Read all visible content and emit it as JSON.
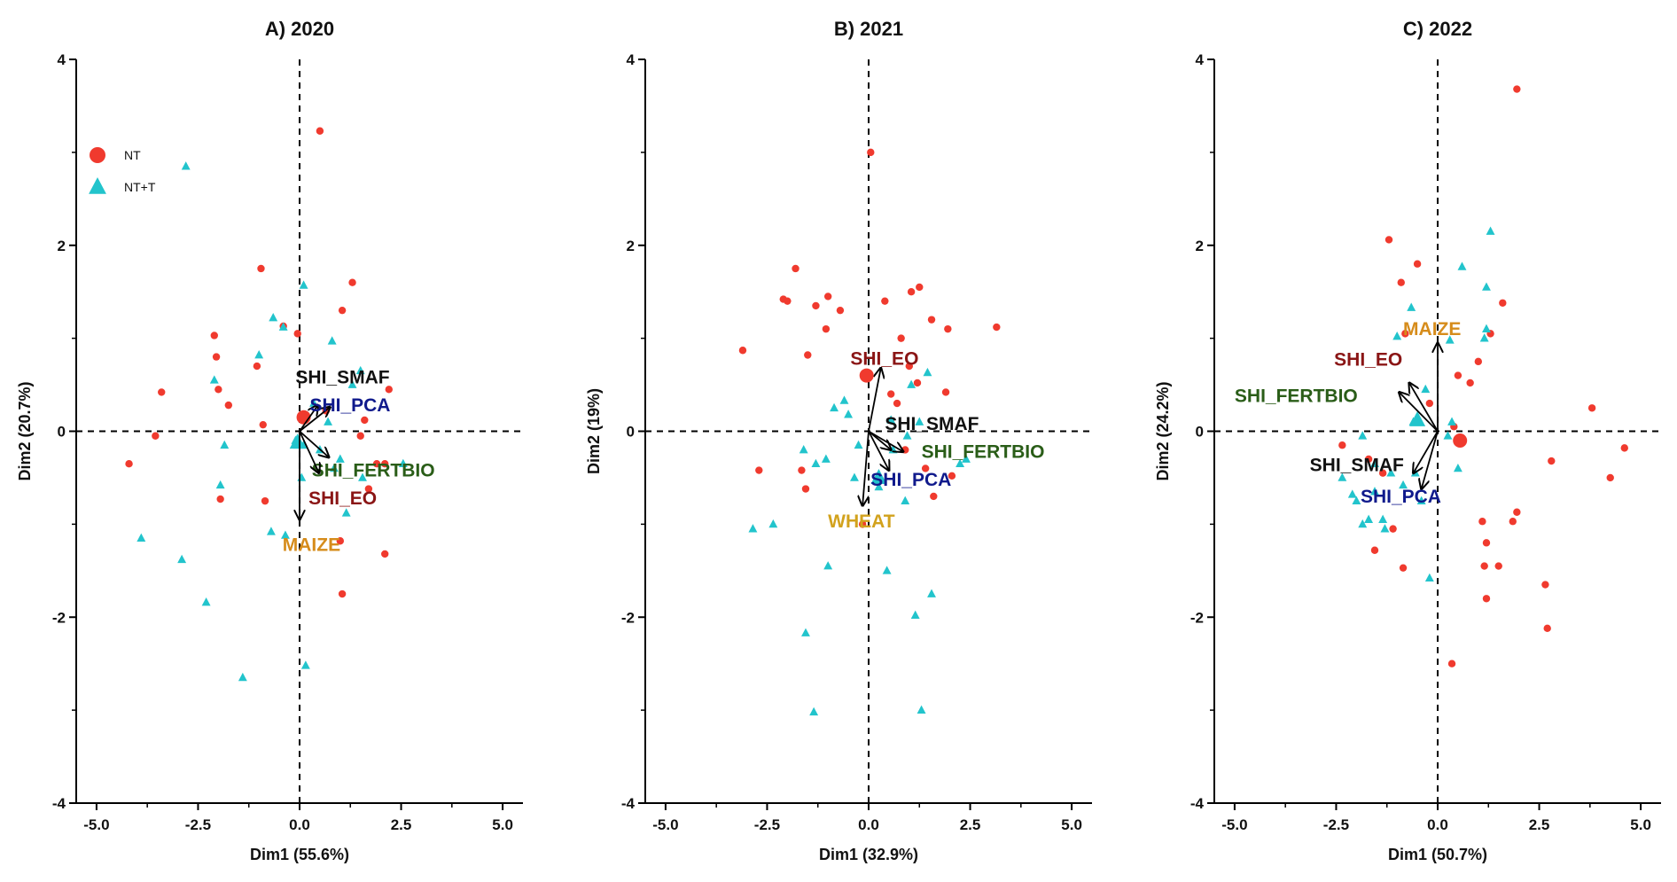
{
  "chart_data": [
    {
      "type": "scatter",
      "title": "A) 2020",
      "xlabel": "Dim1 (55.6%)",
      "ylabel": "Dim2 (20.7%)",
      "xlim": [
        -5.5,
        5.5
      ],
      "ylim": [
        -4,
        4
      ],
      "x_ticks": [
        -5.0,
        -2.5,
        0.0,
        2.5,
        5.0
      ],
      "x_tick_labels": [
        "-5.0",
        "-2.5",
        "0.0",
        "2.5",
        "5.0"
      ],
      "y_ticks": [
        -4,
        -2,
        0,
        2,
        4
      ],
      "y_tick_labels": [
        "-4",
        "-2",
        "0",
        "2",
        "4"
      ],
      "legend": {
        "position": "top-left",
        "entries": [
          {
            "label": "NT",
            "marker": "circle",
            "color": "#f03a2e"
          },
          {
            "label": "NT+T",
            "marker": "triangle",
            "color": "#22c4cc"
          }
        ]
      },
      "series": [
        {
          "name": "NT",
          "marker": "circle",
          "color": "#f03a2e",
          "x": [
            0.5,
            -0.4,
            -1.05,
            1.05,
            -2.1,
            -2.05,
            -3.4,
            -2.0,
            -0.85,
            -0.95,
            -0.05,
            1.3,
            2.2,
            1.6,
            1.5,
            1.9,
            1.7,
            2.1,
            -4.2,
            -3.55,
            -1.75,
            -0.9,
            1.0,
            2.1,
            1.05,
            -1.95,
            0.65
          ],
          "y": [
            3.23,
            1.13,
            0.7,
            1.3,
            1.03,
            0.8,
            0.42,
            0.45,
            -0.75,
            1.75,
            1.05,
            1.6,
            0.45,
            0.12,
            -0.05,
            -0.35,
            -0.62,
            -1.32,
            -0.35,
            -0.05,
            0.28,
            0.07,
            -1.18,
            -0.35,
            -1.75,
            -0.73,
            0.22
          ],
          "centroid": [
            0.1,
            0.15
          ]
        },
        {
          "name": "NT+T",
          "marker": "triangle",
          "color": "#22c4cc",
          "x": [
            -2.8,
            0.1,
            -0.4,
            -1.0,
            -0.65,
            -2.1,
            0.8,
            1.3,
            1.5,
            0.35,
            -0.1,
            -0.05,
            0.1,
            0.5,
            0.85,
            1.55,
            2.55,
            1.15,
            0.05,
            -1.85,
            -0.35,
            -1.95,
            -3.9,
            -2.9,
            -2.3,
            0.15,
            -1.4,
            -0.7,
            0.7,
            1.0
          ],
          "y": [
            2.85,
            1.57,
            1.12,
            0.82,
            1.22,
            0.55,
            0.97,
            0.5,
            0.65,
            0.3,
            -0.1,
            -0.15,
            -0.15,
            -0.2,
            -0.4,
            -0.5,
            -0.35,
            -0.88,
            -0.5,
            -0.15,
            -1.12,
            -0.58,
            -1.15,
            -1.38,
            -1.84,
            -2.52,
            -2.65,
            -1.08,
            0.1,
            -0.3
          ],
          "centroid": [
            -0.05,
            -0.12
          ]
        }
      ],
      "vectors": [
        {
          "label": "SHI_SMAF",
          "x": 0.45,
          "y": 0.28,
          "color": "#111111",
          "label_x": -0.1,
          "label_y": 0.58
        },
        {
          "label": "SHI_PCA",
          "x": 0.75,
          "y": 0.26,
          "color": "#101a8c",
          "label_x": 0.25,
          "label_y": 0.28
        },
        {
          "label": "SHI_FERTBIO",
          "x": 0.72,
          "y": -0.28,
          "color": "#2a5d18",
          "label_x": 0.3,
          "label_y": -0.42
        },
        {
          "label": "SHI_EO",
          "x": 0.48,
          "y": -0.45,
          "color": "#8a1515",
          "label_x": 0.22,
          "label_y": -0.72
        },
        {
          "label": "MAIZE",
          "x": 0.0,
          "y": -0.95,
          "color": "#d68c1b",
          "label_x": -0.42,
          "label_y": -1.22
        }
      ]
    },
    {
      "type": "scatter",
      "title": "B) 2021",
      "xlabel": "Dim1 (32.9%)",
      "ylabel": "Dim2 (19%)",
      "xlim": [
        -5.5,
        5.5
      ],
      "ylim": [
        -4,
        4
      ],
      "x_ticks": [
        -5.0,
        -2.5,
        0.0,
        2.5,
        5.0
      ],
      "x_tick_labels": [
        "-5.0",
        "-2.5",
        "0.0",
        "2.5",
        "5.0"
      ],
      "y_ticks": [
        -4,
        -2,
        0,
        2,
        4
      ],
      "y_tick_labels": [
        "-4",
        "-2",
        "0",
        "2",
        "4"
      ],
      "series": [
        {
          "name": "NT",
          "marker": "circle",
          "color": "#f03a2e",
          "x": [
            0.05,
            -1.8,
            -2.1,
            -1.0,
            -2.0,
            -1.3,
            -0.7,
            -1.05,
            -1.5,
            0.4,
            1.05,
            1.25,
            1.55,
            1.95,
            3.15,
            -3.1,
            0.8,
            1.0,
            1.2,
            1.9,
            0.55,
            0.7,
            0.9,
            1.4,
            -2.7,
            -1.65,
            -1.55,
            -0.15,
            1.6,
            2.05
          ],
          "y": [
            3.0,
            1.75,
            1.42,
            1.45,
            1.4,
            1.35,
            1.3,
            1.1,
            0.82,
            1.4,
            1.5,
            1.55,
            1.2,
            1.1,
            1.12,
            0.87,
            1.0,
            0.7,
            0.52,
            0.42,
            0.4,
            0.3,
            -0.2,
            -0.4,
            -0.42,
            -0.42,
            -0.62,
            -1.0,
            -0.7,
            -0.48
          ],
          "centroid": [
            -0.05,
            0.6
          ]
        },
        {
          "name": "NT+T",
          "marker": "triangle",
          "color": "#22c4cc",
          "x": [
            -0.85,
            -0.6,
            -0.5,
            0.55,
            1.05,
            1.25,
            1.45,
            0.6,
            0.95,
            2.4,
            2.25,
            -1.6,
            -1.05,
            -0.25,
            -1.3,
            -0.35,
            0.25,
            -2.85,
            -2.35,
            -1.0,
            0.45,
            -1.55,
            -1.35,
            1.15,
            1.55,
            1.3,
            0.9
          ],
          "y": [
            0.25,
            0.33,
            0.18,
            0.12,
            0.5,
            0.1,
            0.63,
            -0.2,
            -0.05,
            -0.3,
            -0.35,
            -0.2,
            -0.3,
            -0.15,
            -0.35,
            -0.5,
            -0.6,
            -1.05,
            -1.0,
            -1.45,
            -1.5,
            -2.17,
            -3.02,
            -1.98,
            -1.75,
            -3.0,
            -0.75
          ],
          "centroid": [
            0.25,
            -0.5
          ]
        }
      ],
      "vectors": [
        {
          "label": "SHI_EO",
          "x": 0.3,
          "y": 0.68,
          "color": "#8a1515",
          "label_x": -0.45,
          "label_y": 0.78
        },
        {
          "label": "SHI_SMAF",
          "x": 0.55,
          "y": -0.2,
          "color": "#111111",
          "label_x": 0.4,
          "label_y": 0.08
        },
        {
          "label": "SHI_FERTBIO",
          "x": 0.85,
          "y": -0.22,
          "color": "#2a5d18",
          "label_x": 1.3,
          "label_y": -0.22
        },
        {
          "label": "SHI_PCA",
          "x": 0.5,
          "y": -0.42,
          "color": "#101a8c",
          "label_x": 0.05,
          "label_y": -0.52
        },
        {
          "label": "WHEAT",
          "x": -0.15,
          "y": -0.8,
          "color": "#d2a21d",
          "label_x": -1.0,
          "label_y": -0.97
        }
      ]
    },
    {
      "type": "scatter",
      "title": "C) 2022",
      "xlabel": "Dim1 (50.7%)",
      "ylabel": "Dim2 (24.2%)",
      "xlim": [
        -5.5,
        5.5
      ],
      "ylim": [
        -4,
        4
      ],
      "x_ticks": [
        -5.0,
        -2.5,
        0.0,
        2.5,
        5.0
      ],
      "x_tick_labels": [
        "-5.0",
        "-2.5",
        "0.0",
        "2.5",
        "5.0"
      ],
      "y_ticks": [
        -4,
        -2,
        0,
        2,
        4
      ],
      "y_tick_labels": [
        "-4",
        "-2",
        "0",
        "2",
        "4"
      ],
      "series": [
        {
          "name": "NT",
          "marker": "circle",
          "color": "#f03a2e",
          "x": [
            1.95,
            -1.2,
            -0.9,
            -0.5,
            1.6,
            1.3,
            1.0,
            0.5,
            0.8,
            3.8,
            4.6,
            4.25,
            2.8,
            2.65,
            2.7,
            1.95,
            1.85,
            1.1,
            1.2,
            1.5,
            1.15,
            1.2,
            0.35,
            -0.85,
            -1.1,
            -1.55,
            -1.7,
            -2.35,
            -1.35,
            0.4,
            -0.8,
            -0.2
          ],
          "y": [
            3.68,
            2.06,
            1.6,
            1.8,
            1.38,
            1.05,
            0.75,
            0.6,
            0.52,
            0.25,
            -0.18,
            -0.5,
            -0.32,
            -1.65,
            -2.12,
            -0.87,
            -0.97,
            -0.97,
            -1.2,
            -1.45,
            -1.45,
            -1.8,
            -2.5,
            -1.47,
            -1.05,
            -1.28,
            -0.3,
            -0.15,
            -0.45,
            0.05,
            1.05,
            0.3
          ],
          "centroid": [
            0.55,
            -0.1
          ]
        },
        {
          "name": "NT+T",
          "marker": "triangle",
          "color": "#22c4cc",
          "x": [
            1.3,
            0.6,
            1.15,
            1.2,
            -1.0,
            -0.65,
            -0.3,
            -0.6,
            0.35,
            0.25,
            0.5,
            -0.4,
            -1.85,
            -1.55,
            -1.15,
            -0.85,
            -0.55,
            -2.35,
            -2.1,
            -1.7,
            -1.35,
            -1.85,
            -2.0,
            -1.55,
            -1.3,
            -0.2,
            0.3,
            1.2
          ],
          "y": [
            2.15,
            1.77,
            1.0,
            1.1,
            1.02,
            1.33,
            0.45,
            0.1,
            0.1,
            -0.05,
            -0.4,
            -0.75,
            -0.05,
            -0.35,
            -0.45,
            -0.58,
            -0.45,
            -0.5,
            -0.68,
            -0.95,
            -0.95,
            -1.0,
            -0.75,
            -0.65,
            -1.05,
            -1.58,
            0.98,
            1.55
          ],
          "centroid": [
            -0.5,
            0.12
          ]
        }
      ],
      "vectors": [
        {
          "label": "MAIZE",
          "x": 0.0,
          "y": 0.95,
          "color": "#d68c1b",
          "label_x": -0.85,
          "label_y": 1.1
        },
        {
          "label": "SHI_EO",
          "x": -0.7,
          "y": 0.52,
          "color": "#8a1515",
          "label_x": -2.55,
          "label_y": 0.77
        },
        {
          "label": "SHI_FERTBIO",
          "x": -0.95,
          "y": 0.42,
          "color": "#2a5d18",
          "label_x": -5.0,
          "label_y": 0.38
        },
        {
          "label": "SHI_SMAF",
          "x": -0.6,
          "y": -0.45,
          "color": "#111111",
          "label_x": -3.15,
          "label_y": -0.36
        },
        {
          "label": "SHI_PCA",
          "x": -0.4,
          "y": -0.62,
          "color": "#101a8c",
          "label_x": -1.9,
          "label_y": -0.7
        }
      ]
    }
  ]
}
